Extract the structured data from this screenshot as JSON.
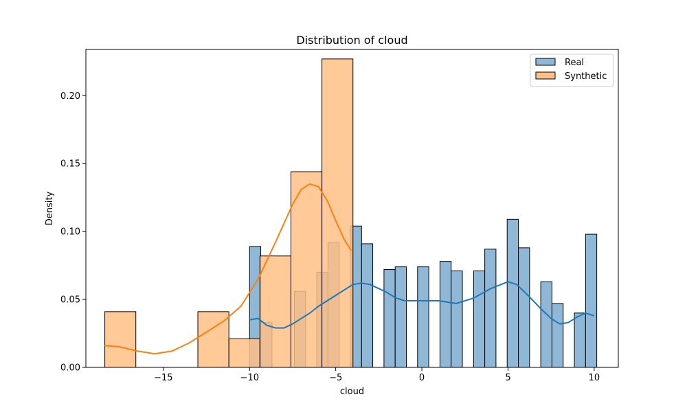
{
  "chart_data": {
    "type": "bar",
    "title": "Distribution of cloud",
    "xlabel": "cloud",
    "ylabel": "Density",
    "xlim": [
      -19.5,
      11.4
    ],
    "ylim": [
      0,
      0.234
    ],
    "xticks": [
      -15,
      -10,
      -5,
      0,
      5,
      10
    ],
    "xtick_labels": [
      "−15",
      "−10",
      "−5",
      "0",
      "5",
      "10"
    ],
    "yticks": [
      0,
      0.05,
      0.1,
      0.15,
      0.2
    ],
    "ytick_labels": [
      "0.00",
      "0.05",
      "0.10",
      "0.15",
      "0.20"
    ],
    "grid": false,
    "legend_position": "top-right",
    "series": [
      {
        "name": "Real",
        "color": "#1f77b4",
        "fill": "#8fb7d6",
        "bins": [
          {
            "x0": -10.0,
            "x1": -9.35,
            "value": 0.089
          },
          {
            "x0": -9.35,
            "x1": -8.7,
            "value": 0.033
          },
          {
            "x0": -7.4,
            "x1": -6.75,
            "value": 0.056
          },
          {
            "x0": -6.1,
            "x1": -5.45,
            "value": 0.07
          },
          {
            "x0": -5.45,
            "x1": -4.8,
            "value": 0.092
          },
          {
            "x0": -4.15,
            "x1": -3.5,
            "value": 0.104
          },
          {
            "x0": -3.5,
            "x1": -2.85,
            "value": 0.091
          },
          {
            "x0": -2.2,
            "x1": -1.55,
            "value": 0.072
          },
          {
            "x0": -1.55,
            "x1": -0.9,
            "value": 0.074
          },
          {
            "x0": -0.25,
            "x1": 0.4,
            "value": 0.074
          },
          {
            "x0": 1.05,
            "x1": 1.7,
            "value": 0.078
          },
          {
            "x0": 1.7,
            "x1": 2.35,
            "value": 0.071
          },
          {
            "x0": 3.0,
            "x1": 3.65,
            "value": 0.071
          },
          {
            "x0": 3.65,
            "x1": 4.3,
            "value": 0.087
          },
          {
            "x0": 4.95,
            "x1": 5.6,
            "value": 0.109
          },
          {
            "x0": 5.6,
            "x1": 6.25,
            "value": 0.088
          },
          {
            "x0": 6.9,
            "x1": 7.55,
            "value": 0.063
          },
          {
            "x0": 7.55,
            "x1": 8.2,
            "value": 0.047
          },
          {
            "x0": 8.85,
            "x1": 9.5,
            "value": 0.04
          },
          {
            "x0": 9.5,
            "x1": 10.15,
            "value": 0.098
          }
        ],
        "kde": [
          [
            -10.0,
            0.035
          ],
          [
            -9.5,
            0.036
          ],
          [
            -9.0,
            0.031
          ],
          [
            -8.5,
            0.029
          ],
          [
            -8.0,
            0.029
          ],
          [
            -7.5,
            0.032
          ],
          [
            -7.0,
            0.036
          ],
          [
            -6.5,
            0.04
          ],
          [
            -6.0,
            0.045
          ],
          [
            -5.0,
            0.053
          ],
          [
            -4.0,
            0.061
          ],
          [
            -3.5,
            0.062
          ],
          [
            -3.0,
            0.061
          ],
          [
            -2.0,
            0.055
          ],
          [
            -1.5,
            0.051
          ],
          [
            -1.0,
            0.049
          ],
          [
            0.0,
            0.049
          ],
          [
            1.0,
            0.049
          ],
          [
            1.5,
            0.048
          ],
          [
            2.0,
            0.047
          ],
          [
            3.0,
            0.051
          ],
          [
            4.0,
            0.058
          ],
          [
            5.0,
            0.063
          ],
          [
            5.5,
            0.061
          ],
          [
            6.0,
            0.055
          ],
          [
            7.0,
            0.042
          ],
          [
            7.5,
            0.036
          ],
          [
            8.0,
            0.032
          ],
          [
            8.5,
            0.033
          ],
          [
            9.0,
            0.037
          ],
          [
            9.5,
            0.04
          ],
          [
            10.0,
            0.038
          ]
        ]
      },
      {
        "name": "Synthetic",
        "color": "#ff7f0e",
        "fill": "#ffbf86",
        "bins": [
          {
            "x0": -18.4,
            "x1": -16.6,
            "value": 0.041
          },
          {
            "x0": -13.0,
            "x1": -11.2,
            "value": 0.041
          },
          {
            "x0": -11.2,
            "x1": -9.4,
            "value": 0.021
          },
          {
            "x0": -9.4,
            "x1": -7.6,
            "value": 0.082
          },
          {
            "x0": -7.6,
            "x1": -5.8,
            "value": 0.144
          },
          {
            "x0": -5.8,
            "x1": -4.0,
            "value": 0.227
          }
        ],
        "kde": [
          [
            -18.4,
            0.016
          ],
          [
            -17.5,
            0.015
          ],
          [
            -16.5,
            0.012
          ],
          [
            -15.5,
            0.01
          ],
          [
            -14.5,
            0.012
          ],
          [
            -13.5,
            0.018
          ],
          [
            -12.5,
            0.026
          ],
          [
            -11.5,
            0.034
          ],
          [
            -10.5,
            0.045
          ],
          [
            -9.5,
            0.065
          ],
          [
            -8.5,
            0.092
          ],
          [
            -7.5,
            0.12
          ],
          [
            -7.0,
            0.131
          ],
          [
            -6.5,
            0.135
          ],
          [
            -6.0,
            0.133
          ],
          [
            -5.5,
            0.123
          ],
          [
            -5.0,
            0.108
          ],
          [
            -4.5,
            0.094
          ],
          [
            -4.1,
            0.086
          ]
        ]
      }
    ]
  }
}
